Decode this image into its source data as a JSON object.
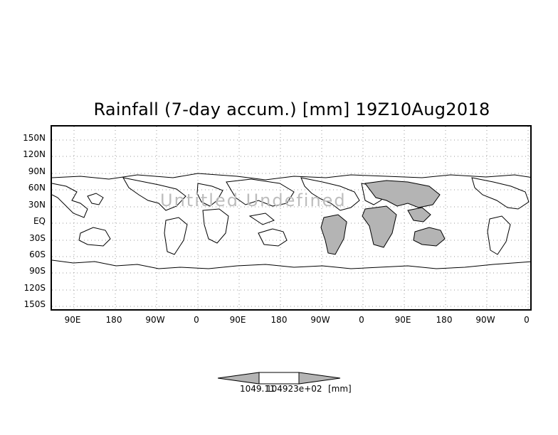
{
  "title": "Rainfall (7-day accum.) [mm] 19Z10Aug2018",
  "watermark": "Untitled Undefined",
  "y_labels": [
    "150N",
    "120N",
    "90N",
    "60N",
    "30N",
    "EQ",
    "30S",
    "60S",
    "90S",
    "120S",
    "150S"
  ],
  "x_labels": [
    "90E",
    "180",
    "90W",
    "0",
    "90E",
    "180",
    "90W",
    "0",
    "90E",
    "180",
    "90W",
    "0"
  ],
  "colorbar": {
    "label_left": "1049.11",
    "label_right": "104923e+02",
    "units": "[mm]",
    "fill_color": "#b4b4b4"
  },
  "colors": {
    "land_shaded": "#b4b4b4",
    "grid": "#9a9a9a",
    "frame": "#000000"
  }
}
